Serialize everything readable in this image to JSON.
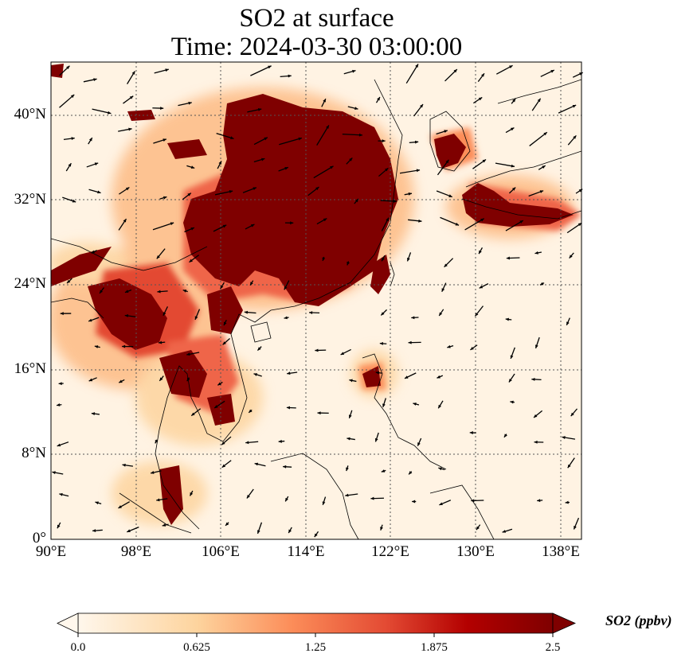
{
  "title": {
    "line1": "SO2 at surface",
    "line2": "Time: 2024-03-30 03:00:00"
  },
  "map": {
    "variable": "SO2",
    "units": "ppbv",
    "lon_range": [
      90,
      140
    ],
    "lat_range": [
      0,
      45
    ],
    "lon_ticks": [
      "90°E",
      "98°E",
      "106°E",
      "114°E",
      "122°E",
      "130°E",
      "138°E"
    ],
    "lat_ticks": [
      "40°N",
      "32°N",
      "24°N",
      "16°N",
      "8°N",
      "0°"
    ],
    "gridlines": true,
    "colormap": "OrRd",
    "high_color": "#7f0000",
    "low_color": "#fff7ec"
  },
  "colorbar": {
    "ticks": [
      "0.0",
      "0.625",
      "1.25",
      "1.875",
      "2.5"
    ],
    "label": "SO2 (ppbv)",
    "extend": "both"
  }
}
